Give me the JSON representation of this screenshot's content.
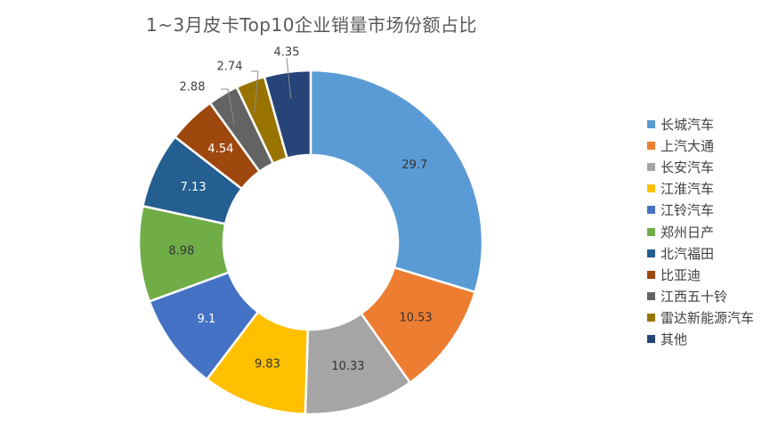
{
  "chart_data": {
    "type": "pie",
    "donut": true,
    "title": "1~3月皮卡Top10企业销量市场份额占比",
    "series": [
      {
        "name": "",
        "values": [
          29.7,
          10.53,
          10.33,
          9.83,
          9.1,
          8.98,
          7.13,
          4.54,
          2.88,
          2.74,
          4.35
        ]
      }
    ],
    "categories": [
      "长城汽车",
      "上汽大通",
      "长安汽车",
      "江淮汽车",
      "江铃汽车",
      "郑州日产",
      "北汽福田",
      "比亚迪",
      "江西五十铃",
      "雷达新能源汽车",
      "其他"
    ],
    "data_labels": [
      "29.7",
      "10.53",
      "10.33",
      "9.83",
      "9.1",
      "8.98",
      "7.13",
      "4.54",
      "2.88",
      "2.74",
      "4.35"
    ],
    "colors": [
      "#5B9BD5",
      "#ED7D31",
      "#A5A5A5",
      "#FFC000",
      "#4472C4",
      "#70AD47",
      "#255E91",
      "#9E480E",
      "#636363",
      "#997300",
      "#264478"
    ],
    "label_colors": [
      "#333333",
      "#333333",
      "#333333",
      "#333333",
      "#ffffff",
      "#333333",
      "#ffffff",
      "#ffffff",
      "#ffffff",
      "#ffffff",
      "#ffffff"
    ],
    "legend_position": "right",
    "start_angle_deg": 0,
    "direction": "clockwise"
  }
}
